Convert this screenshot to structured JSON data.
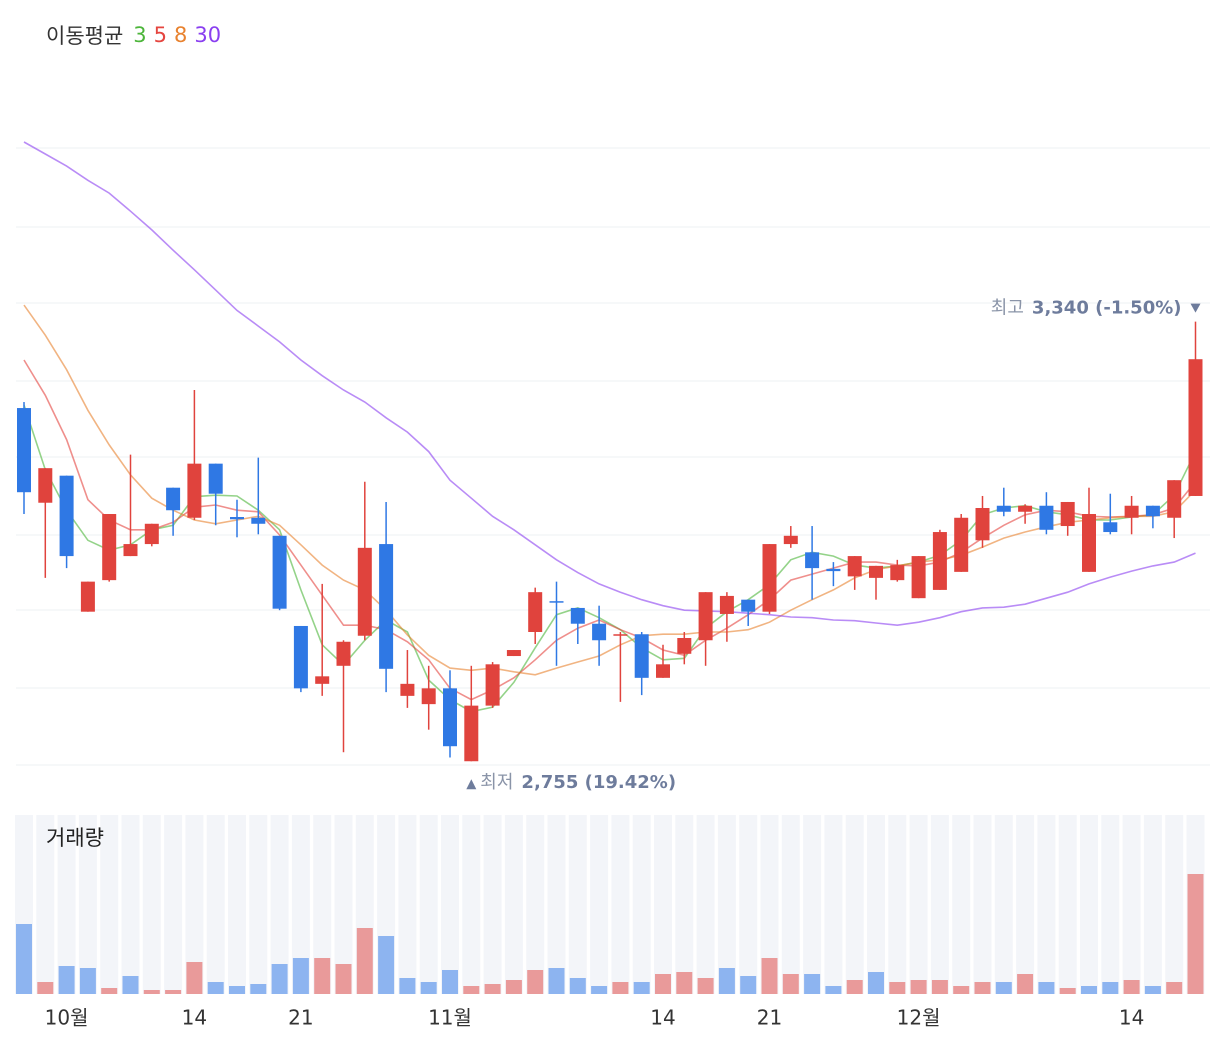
{
  "chart_data": {
    "type": "candlestick",
    "legend_title": "이동평균",
    "volume_title": "거래량",
    "categories": [
      null,
      null,
      "10월",
      null,
      null,
      null,
      null,
      null,
      "14",
      null,
      null,
      null,
      null,
      "21",
      null,
      null,
      null,
      null,
      null,
      null,
      "11월",
      null,
      null,
      null,
      null,
      null,
      null,
      null,
      null,
      null,
      "14",
      null,
      null,
      null,
      null,
      "21",
      null,
      null,
      null,
      null,
      null,
      null,
      "12월",
      null,
      null,
      null,
      null,
      null,
      null,
      null,
      null,
      null,
      "14",
      null,
      null,
      null
    ],
    "open": [
      3225,
      3099,
      3135,
      2954,
      2996,
      3028,
      3044,
      3119,
      3079,
      3151,
      3080,
      3079,
      3055,
      2935,
      2858,
      2882,
      2922,
      3044,
      2842,
      2831,
      2852,
      2755,
      2829,
      2895,
      2927,
      2968,
      2959,
      2938,
      2922,
      2924,
      2866,
      2898,
      2916,
      2951,
      2970,
      2954,
      3044,
      3033,
      3011,
      3001,
      2999,
      2996,
      2972,
      2983,
      3007,
      3049,
      3095,
      3087,
      3095,
      3068,
      3007,
      3073,
      3079,
      3095,
      3079,
      3108
    ],
    "high": [
      3233,
      3145,
      3135,
      2994,
      3084,
      3163,
      3071,
      3119,
      3249,
      3151,
      3103,
      3159,
      3055,
      2935,
      2991,
      2916,
      3127,
      3100,
      2903,
      2882,
      2876,
      2882,
      2887,
      2903,
      2986,
      2994,
      2959,
      2962,
      2927,
      2927,
      2910,
      2927,
      2980,
      2980,
      2970,
      3044,
      3068,
      3068,
      3020,
      3028,
      3015,
      3023,
      3028,
      3063,
      3084,
      3108,
      3119,
      3097,
      3113,
      3100,
      3119,
      3111,
      3108,
      3095,
      3129,
      3340
    ],
    "low": [
      3084,
      2999,
      3012,
      2954,
      2994,
      3028,
      3041,
      3055,
      3076,
      3069,
      3053,
      3057,
      2956,
      2847,
      2842,
      2767,
      2916,
      2847,
      2826,
      2797,
      2760,
      2755,
      2826,
      2895,
      2911,
      2882,
      2911,
      2882,
      2834,
      2843,
      2866,
      2884,
      2882,
      2914,
      2935,
      2951,
      3039,
      2970,
      2988,
      2983,
      2970,
      2994,
      2972,
      2983,
      3007,
      3039,
      3081,
      3071,
      3057,
      3055,
      3007,
      3057,
      3057,
      3065,
      3052,
      3108
    ],
    "close": [
      3113,
      3145,
      3028,
      2994,
      3084,
      3044,
      3071,
      3089,
      3151,
      3111,
      3077,
      3071,
      2958,
      2852,
      2868,
      2914,
      3039,
      2878,
      2858,
      2852,
      2775,
      2829,
      2884,
      2903,
      2980,
      2966,
      2938,
      2916,
      2924,
      2866,
      2884,
      2919,
      2980,
      2975,
      2954,
      3044,
      3055,
      3012,
      3008,
      3028,
      3015,
      3016,
      3028,
      3060,
      3079,
      3092,
      3087,
      3095,
      3063,
      3100,
      3084,
      3060,
      3095,
      3081,
      3129,
      3290
    ],
    "up_color": "#e0433d",
    "down_color": "#2f78e4",
    "ylim": [
      2750,
      3595
    ],
    "series": [
      {
        "name": "3",
        "color": "#4cb53a",
        "values": [
          3229,
          3143,
          3089,
          3049,
          3036,
          3043,
          3063,
          3069,
          3107,
          3109,
          3108,
          3089,
          3063,
          2983,
          2910,
          2883,
          2916,
          2943,
          2927,
          2863,
          2837,
          2821,
          2827,
          2860,
          2906,
          2950,
          2959,
          2946,
          2930,
          2906,
          2890,
          2892,
          2932,
          2954,
          2970,
          2990,
          3023,
          3033,
          3028,
          3016,
          3012,
          3015,
          3020,
          3029,
          3049,
          3083,
          3092,
          3095,
          3087,
          3083,
          3076,
          3076,
          3080,
          3083,
          3109,
          3167
        ]
      },
      {
        "name": "5",
        "color": "#e5453f",
        "values": [
          3289,
          3242,
          3183,
          3103,
          3076,
          3063,
          3063,
          3073,
          3093,
          3096,
          3089,
          3087,
          3056,
          3016,
          2976,
          2936,
          2936,
          2930,
          2914,
          2890,
          2852,
          2837,
          2850,
          2866,
          2890,
          2916,
          2932,
          2943,
          2930,
          2919,
          2903,
          2896,
          2916,
          2932,
          2950,
          2970,
          2996,
          3004,
          3012,
          3020,
          3020,
          3016,
          3015,
          3020,
          3033,
          3052,
          3069,
          3083,
          3089,
          3087,
          3081,
          3080,
          3081,
          3083,
          3092,
          3127
        ]
      },
      {
        "name": "8",
        "color": "#e8822f",
        "values": [
          3362,
          3322,
          3276,
          3222,
          3176,
          3136,
          3105,
          3089,
          3076,
          3071,
          3076,
          3081,
          3069,
          3043,
          3016,
          2996,
          2983,
          2956,
          2923,
          2896,
          2879,
          2876,
          2879,
          2874,
          2870,
          2879,
          2887,
          2895,
          2910,
          2922,
          2924,
          2924,
          2927,
          2927,
          2930,
          2940,
          2956,
          2970,
          2983,
          2999,
          3010,
          3015,
          3020,
          3023,
          3029,
          3040,
          3052,
          3060,
          3067,
          3073,
          3076,
          3079,
          3081,
          3081,
          3087,
          3116
        ]
      },
      {
        "name": "30",
        "color": "#8a3ff0",
        "values": [
          3579,
          3563,
          3547,
          3528,
          3511,
          3487,
          3462,
          3435,
          3409,
          3382,
          3355,
          3334,
          3313,
          3289,
          3268,
          3249,
          3233,
          3212,
          3193,
          3167,
          3129,
          3105,
          3081,
          3063,
          3043,
          3023,
          3006,
          2991,
          2980,
          2970,
          2962,
          2956,
          2955,
          2954,
          2952,
          2950,
          2947,
          2946,
          2943,
          2942,
          2939,
          2936,
          2940,
          2946,
          2954,
          2959,
          2960,
          2964,
          2972,
          2980,
          2991,
          3000,
          3008,
          3015,
          3020,
          3032
        ]
      }
    ],
    "annotations": {
      "high": {
        "label": "최고",
        "text": "3,340 (-1.50%)"
      },
      "low": {
        "label": "최저",
        "text": "2,755 (19.42%)"
      }
    },
    "volume": {
      "ylim": [
        0,
        179
      ],
      "values": [
        70,
        12,
        28,
        26,
        6,
        18,
        4,
        4,
        32,
        12,
        8,
        10,
        30,
        36,
        36,
        30,
        66,
        58,
        16,
        12,
        24,
        8,
        10,
        14,
        24,
        26,
        16,
        8,
        12,
        12,
        20,
        22,
        16,
        26,
        18,
        36,
        20,
        20,
        8,
        14,
        22,
        12,
        14,
        14,
        8,
        12,
        12,
        20,
        12,
        6,
        8,
        12,
        14,
        8,
        12,
        120
      ],
      "colors": [
        "#8db4f0",
        "#e99a9a",
        "#8db4f0",
        "#8db4f0",
        "#e99a9a",
        "#8db4f0",
        "#e99a9a",
        "#e99a9a",
        "#e99a9a",
        "#8db4f0",
        "#8db4f0",
        "#8db4f0",
        "#8db4f0",
        "#8db4f0",
        "#e99a9a",
        "#e99a9a",
        "#e99a9a",
        "#8db4f0",
        "#8db4f0",
        "#8db4f0",
        "#8db4f0",
        "#e99a9a",
        "#e99a9a",
        "#e99a9a",
        "#e99a9a",
        "#8db4f0",
        "#8db4f0",
        "#8db4f0",
        "#e99a9a",
        "#8db4f0",
        "#e99a9a",
        "#e99a9a",
        "#e99a9a",
        "#8db4f0",
        "#8db4f0",
        "#e99a9a",
        "#e99a9a",
        "#8db4f0",
        "#8db4f0",
        "#e99a9a",
        "#8db4f0",
        "#e99a9a",
        "#e99a9a",
        "#e99a9a",
        "#e99a9a",
        "#e99a9a",
        "#8db4f0",
        "#e99a9a",
        "#8db4f0",
        "#e99a9a",
        "#8db4f0",
        "#8db4f0",
        "#e99a9a",
        "#8db4f0",
        "#e99a9a",
        "#e99a9a"
      ]
    }
  }
}
